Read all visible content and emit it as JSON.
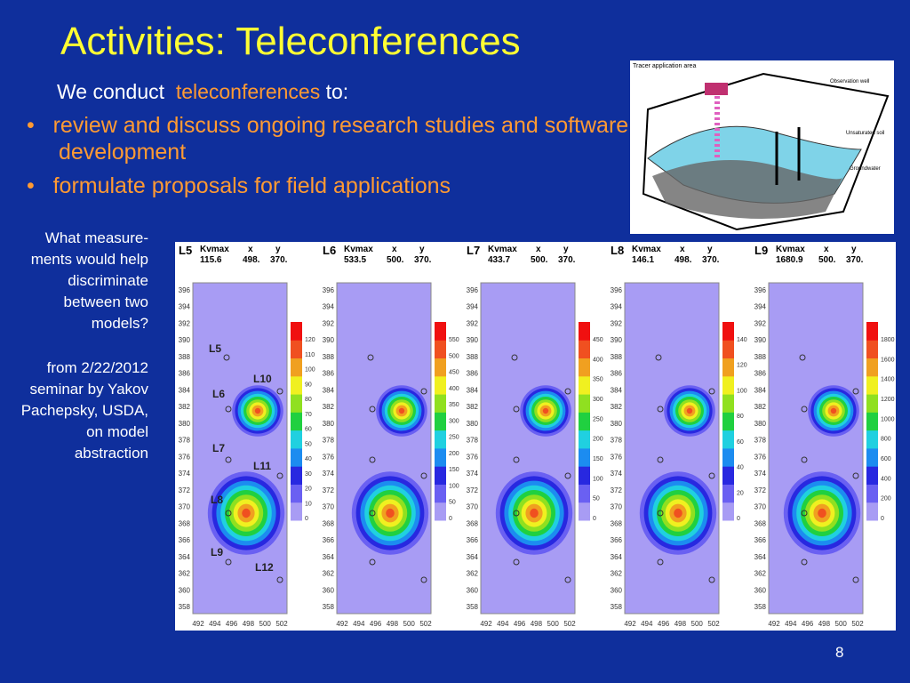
{
  "slide": {
    "title": "Activities: Teleconferences",
    "intro": {
      "before": "We conduct",
      "highlight": "teleconferences",
      "after": "to:"
    },
    "bullets": [
      "review and discuss ongoing research studies and software development",
      "formulate proposals for field applications"
    ],
    "note": [
      "What measure-ments would help discriminate between two models?",
      "from 2/22/2012 seminar by Yakov Pachepsky, USDA, on model abstraction"
    ],
    "page_number": "8",
    "diagram": {
      "labels": [
        "Tracer application area",
        "Observation well",
        "Unsaturated soil",
        "Groundwater"
      ]
    },
    "plots": {
      "header": [
        "Kvmax",
        "x",
        "y"
      ],
      "yticks": [
        396,
        394,
        392,
        390,
        388,
        386,
        384,
        382,
        380,
        378,
        376,
        374,
        372,
        370,
        368,
        366,
        364,
        362,
        360,
        358
      ],
      "xticks": [
        492,
        494,
        496,
        498,
        500,
        502
      ],
      "wells": [
        "L5",
        "L10",
        "L6",
        "L7",
        "L11",
        "L8",
        "L9",
        "L12"
      ],
      "panels": [
        {
          "name": "L5",
          "kvmax": "115.6",
          "x": "498.",
          "y": "370.",
          "colorbar": [
            0,
            10,
            20,
            30,
            40,
            50,
            60,
            70,
            80,
            90,
            100,
            110,
            120
          ]
        },
        {
          "name": "L6",
          "kvmax": "533.5",
          "x": "500.",
          "y": "370.",
          "colorbar": [
            0,
            50,
            100,
            150,
            200,
            250,
            300,
            350,
            400,
            450,
            500,
            550
          ]
        },
        {
          "name": "L7",
          "kvmax": "433.7",
          "x": "500.",
          "y": "370.",
          "colorbar": [
            0,
            50,
            100,
            150,
            200,
            250,
            300,
            350,
            400,
            450
          ]
        },
        {
          "name": "L8",
          "kvmax": "146.1",
          "x": "498.",
          "y": "370.",
          "colorbar": [
            0,
            20,
            40,
            60,
            80,
            100,
            120,
            140
          ]
        },
        {
          "name": "L9",
          "kvmax": "1680.9",
          "x": "500.",
          "y": "370.",
          "colorbar": [
            0,
            200,
            400,
            600,
            800,
            1000,
            1200,
            1400,
            1600,
            1800
          ]
        }
      ]
    }
  }
}
